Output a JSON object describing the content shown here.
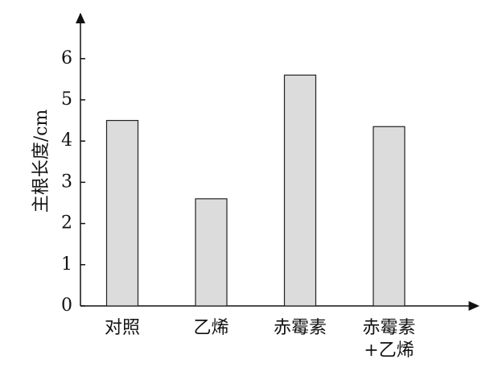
{
  "chart_data": {
    "type": "bar",
    "y_label": "主根长度/cm",
    "categories": [
      "对照",
      "乙烯",
      "赤霉素",
      "赤霉素+乙烯"
    ],
    "values": [
      4.5,
      2.6,
      5.6,
      4.35
    ],
    "color": "#dcdcdc",
    "ylim": [
      0,
      7
    ],
    "yticks": [
      0,
      1,
      2,
      3,
      4,
      5,
      6
    ],
    "grid": false
  }
}
